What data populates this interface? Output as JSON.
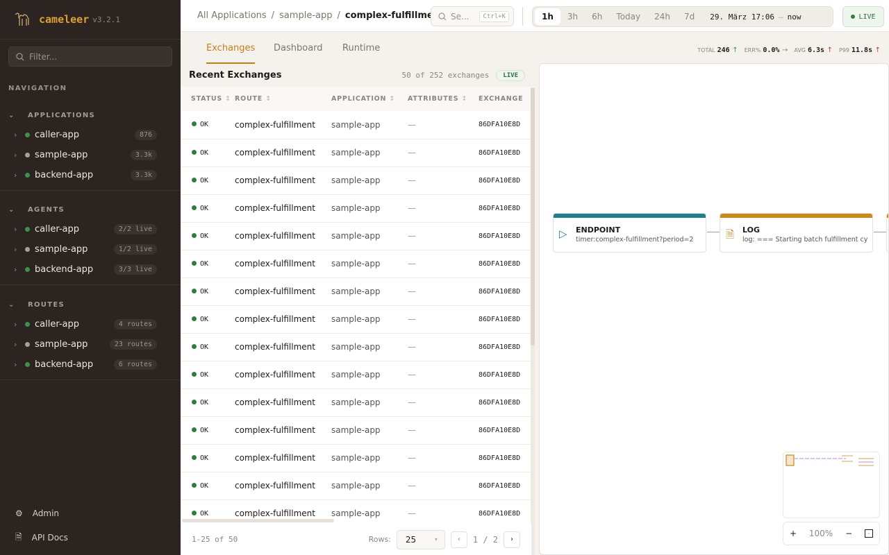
{
  "app": {
    "name": "cameleer",
    "version": "v3.2.1"
  },
  "sidebar": {
    "filter_placeholder": "Filter...",
    "nav_label": "NAVIGATION",
    "sections": [
      {
        "title": "APPLICATIONS",
        "items": [
          {
            "label": "caller-app",
            "status": "green",
            "badge": "876"
          },
          {
            "label": "sample-app",
            "status": "gray",
            "badge": "3.3k"
          },
          {
            "label": "backend-app",
            "status": "green",
            "badge": "3.3k"
          }
        ]
      },
      {
        "title": "AGENTS",
        "items": [
          {
            "label": "caller-app",
            "status": "green",
            "badge": "2/2 live"
          },
          {
            "label": "sample-app",
            "status": "gray",
            "badge": "1/2 live"
          },
          {
            "label": "backend-app",
            "status": "green",
            "badge": "3/3 live"
          }
        ]
      },
      {
        "title": "ROUTES",
        "items": [
          {
            "label": "caller-app",
            "status": "green",
            "badge": "4 routes"
          },
          {
            "label": "sample-app",
            "status": "gray",
            "badge": "23 routes"
          },
          {
            "label": "backend-app",
            "status": "green",
            "badge": "6 routes"
          }
        ]
      }
    ],
    "footer": {
      "admin": "Admin",
      "api_docs": "API Docs"
    }
  },
  "breadcrumb": [
    "All Applications",
    "sample-app",
    "complex-fulfillment"
  ],
  "search": {
    "placeholder": "Se...",
    "shortcut": "Ctrl+K"
  },
  "time_range": {
    "options": [
      "1h",
      "3h",
      "6h",
      "Today",
      "24h",
      "7d"
    ],
    "selected": "1h",
    "from": "29. März 17:06",
    "dash": "—",
    "to": "now"
  },
  "live_label": "LIVE",
  "tabs": [
    {
      "label": "Exchanges",
      "active": true
    },
    {
      "label": "Dashboard",
      "active": false
    },
    {
      "label": "Runtime",
      "active": false
    }
  ],
  "kpis": [
    {
      "label": "TOTAL",
      "value": "246",
      "trend": "↑",
      "trend_color": "#3a8a54"
    },
    {
      "label": "ERR%",
      "value": "0.0%",
      "trend": "→",
      "trend_color": "#8e857c"
    },
    {
      "label": "AVG",
      "value": "6.3s",
      "trend": "↑",
      "trend_color": "#c0392b"
    },
    {
      "label": "P99",
      "value": "11.8s",
      "trend": "↑",
      "trend_color": "#c0392b"
    }
  ],
  "exchanges": {
    "title": "Recent Exchanges",
    "count": "50 of 252 exchanges",
    "live": "LIVE",
    "columns": [
      "STATUS",
      "ROUTE",
      "APPLICATION",
      "ATTRIBUTES",
      "EXCHANGE"
    ],
    "rows": [
      {
        "status": "OK",
        "route": "complex-fulfillment",
        "application": "sample-app",
        "attributes": "—",
        "exchange": "86DFA10E8D"
      },
      {
        "status": "OK",
        "route": "complex-fulfillment",
        "application": "sample-app",
        "attributes": "—",
        "exchange": "86DFA10E8D"
      },
      {
        "status": "OK",
        "route": "complex-fulfillment",
        "application": "sample-app",
        "attributes": "—",
        "exchange": "86DFA10E8D"
      },
      {
        "status": "OK",
        "route": "complex-fulfillment",
        "application": "sample-app",
        "attributes": "—",
        "exchange": "86DFA10E8D"
      },
      {
        "status": "OK",
        "route": "complex-fulfillment",
        "application": "sample-app",
        "attributes": "—",
        "exchange": "86DFA10E8D"
      },
      {
        "status": "OK",
        "route": "complex-fulfillment",
        "application": "sample-app",
        "attributes": "—",
        "exchange": "86DFA10E8D"
      },
      {
        "status": "OK",
        "route": "complex-fulfillment",
        "application": "sample-app",
        "attributes": "—",
        "exchange": "86DFA10E8D"
      },
      {
        "status": "OK",
        "route": "complex-fulfillment",
        "application": "sample-app",
        "attributes": "—",
        "exchange": "86DFA10E8D"
      },
      {
        "status": "OK",
        "route": "complex-fulfillment",
        "application": "sample-app",
        "attributes": "—",
        "exchange": "86DFA10E8D"
      },
      {
        "status": "OK",
        "route": "complex-fulfillment",
        "application": "sample-app",
        "attributes": "—",
        "exchange": "86DFA10E8D"
      },
      {
        "status": "OK",
        "route": "complex-fulfillment",
        "application": "sample-app",
        "attributes": "—",
        "exchange": "86DFA10E8D"
      },
      {
        "status": "OK",
        "route": "complex-fulfillment",
        "application": "sample-app",
        "attributes": "—",
        "exchange": "86DFA10E8D"
      },
      {
        "status": "OK",
        "route": "complex-fulfillment",
        "application": "sample-app",
        "attributes": "—",
        "exchange": "86DFA10E8D"
      },
      {
        "status": "OK",
        "route": "complex-fulfillment",
        "application": "sample-app",
        "attributes": "—",
        "exchange": "86DFA10E8D"
      },
      {
        "status": "OK",
        "route": "complex-fulfillment",
        "application": "sample-app",
        "attributes": "—",
        "exchange": "86DFA10E8D"
      }
    ],
    "pager": {
      "range": "1-25 of 50",
      "rows_label": "Rows:",
      "rows_value": "25",
      "page": "1 / 2"
    }
  },
  "diagram": {
    "nodes": [
      {
        "type": "ENDPOINT",
        "detail": "timer:complex-fulfillment?period=2",
        "color": "#1f7f8a",
        "icon": "play-icon"
      },
      {
        "type": "LOG",
        "detail": "log: === Starting batch fulfillment cy",
        "color": "#c98a1a",
        "icon": "document-icon"
      }
    ],
    "zoom": "100%"
  },
  "colors": {
    "accent": "#c47f12",
    "ok": "#2f7d3f",
    "sidebar_bg": "#2b2420",
    "dot_green": "#3f8f4f",
    "dot_gray": "#a8a098"
  }
}
